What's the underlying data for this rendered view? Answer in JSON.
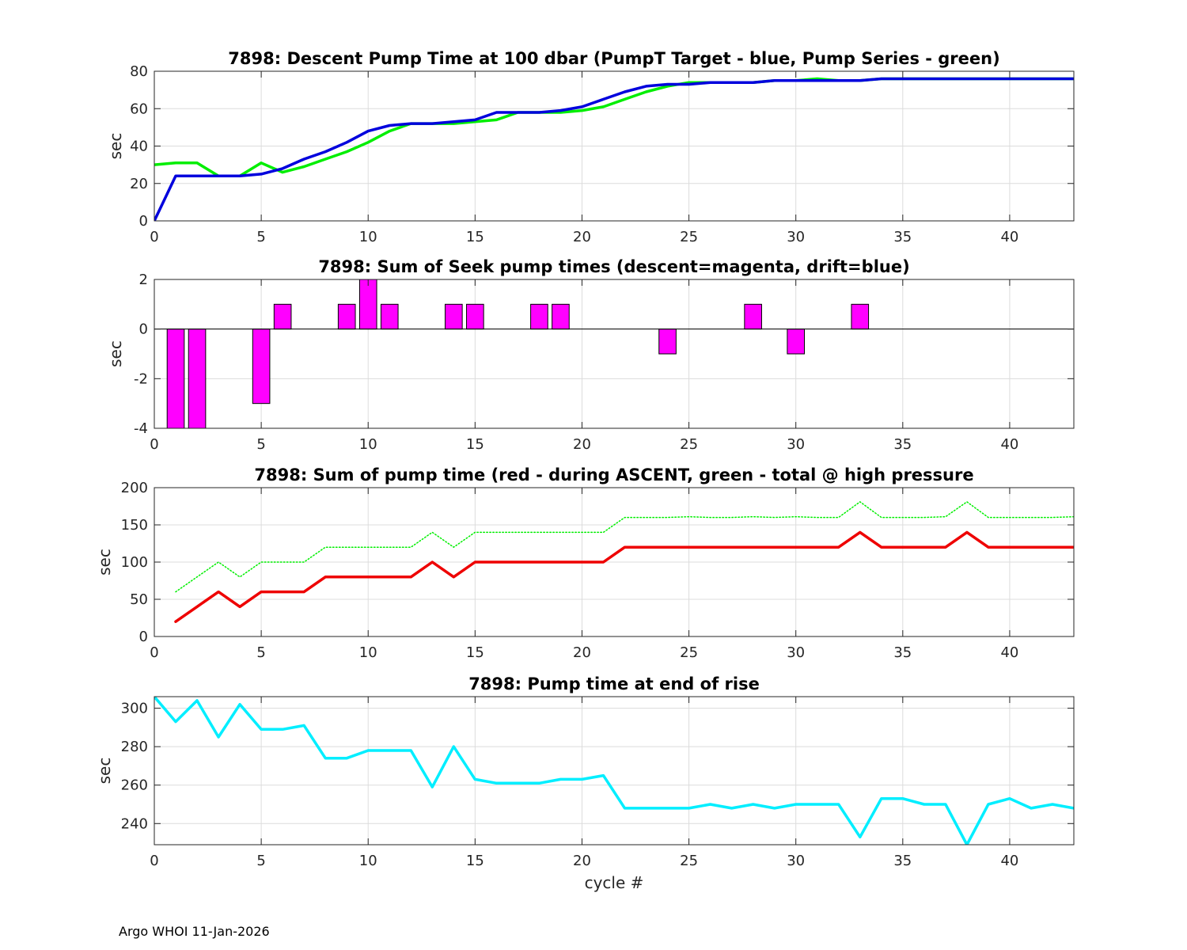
{
  "footer": "Argo WHOI 11-Jan-2026",
  "chart_data": [
    {
      "type": "line",
      "title": "7898: Descent Pump Time at 100 dbar (PumpT Target - blue, Pump Series - green)",
      "xlabel": "",
      "ylabel": "sec",
      "xlim": [
        0,
        43
      ],
      "ylim": [
        0,
        80
      ],
      "xticks": [
        0,
        5,
        10,
        15,
        20,
        25,
        30,
        35,
        40
      ],
      "yticks": [
        0,
        20,
        40,
        60,
        80
      ],
      "series": [
        {
          "name": "Pump Series",
          "color": "#00ee00",
          "style": "solid",
          "x": [
            0,
            1,
            2,
            3,
            4,
            5,
            6,
            7,
            8,
            9,
            10,
            11,
            12,
            13,
            14,
            15,
            16,
            17,
            18,
            19,
            20,
            21,
            22,
            23,
            24,
            25,
            26,
            27,
            28,
            29,
            30,
            31,
            32,
            33,
            34,
            35,
            36,
            37,
            38,
            39,
            40,
            41,
            42,
            43
          ],
          "y": [
            30,
            31,
            31,
            24,
            24,
            31,
            26,
            29,
            33,
            37,
            42,
            48,
            52,
            52,
            52,
            53,
            54,
            58,
            58,
            58,
            59,
            61,
            65,
            69,
            72,
            74,
            74,
            74,
            74,
            75,
            75,
            76,
            75,
            75,
            76,
            76,
            76,
            76,
            76,
            76,
            76,
            76,
            76,
            76
          ]
        },
        {
          "name": "PumpT Target",
          "color": "#0000dd",
          "style": "solid",
          "x": [
            0,
            1,
            2,
            3,
            4,
            5,
            6,
            7,
            8,
            9,
            10,
            11,
            12,
            13,
            14,
            15,
            16,
            17,
            18,
            19,
            20,
            21,
            22,
            23,
            24,
            25,
            26,
            27,
            28,
            29,
            30,
            31,
            32,
            33,
            34,
            35,
            36,
            37,
            38,
            39,
            40,
            41,
            42,
            43
          ],
          "y": [
            0,
            24,
            24,
            24,
            24,
            25,
            28,
            33,
            37,
            42,
            48,
            51,
            52,
            52,
            53,
            54,
            58,
            58,
            58,
            59,
            61,
            65,
            69,
            72,
            73,
            73,
            74,
            74,
            74,
            75,
            75,
            75,
            75,
            75,
            76,
            76,
            76,
            76,
            76,
            76,
            76,
            76,
            76,
            76
          ]
        }
      ]
    },
    {
      "type": "bar",
      "title": "7898: Sum of Seek pump times (descent=magenta, drift=blue)",
      "xlabel": "",
      "ylabel": "sec",
      "xlim": [
        0,
        43
      ],
      "ylim": [
        -4,
        2
      ],
      "xticks": [
        0,
        5,
        10,
        15,
        20,
        25,
        30,
        35,
        40
      ],
      "yticks": [
        -4,
        -2,
        0,
        2
      ],
      "series": [
        {
          "name": "descent",
          "color": "#ff00ff",
          "x": [
            1,
            2,
            5,
            6,
            9,
            10,
            11,
            14,
            15,
            18,
            19,
            24,
            28,
            30,
            33
          ],
          "values": [
            -4,
            -4,
            -3,
            1,
            1,
            2,
            1,
            1,
            1,
            1,
            1,
            -1,
            1,
            -1,
            1
          ]
        }
      ]
    },
    {
      "type": "line",
      "title": "7898: Sum of pump time (red - during ASCENT, green - total @ high pressure",
      "xlabel": "",
      "ylabel": "sec",
      "xlim": [
        0,
        43
      ],
      "ylim": [
        0,
        200
      ],
      "xticks": [
        0,
        5,
        10,
        15,
        20,
        25,
        30,
        35,
        40
      ],
      "yticks": [
        0,
        50,
        100,
        150,
        200
      ],
      "series": [
        {
          "name": "total @ high pressure",
          "color": "#00ee00",
          "style": "dotted",
          "x": [
            1,
            2,
            3,
            4,
            5,
            6,
            7,
            8,
            9,
            10,
            11,
            12,
            13,
            14,
            15,
            16,
            17,
            18,
            19,
            20,
            21,
            22,
            23,
            24,
            25,
            26,
            27,
            28,
            29,
            30,
            31,
            32,
            33,
            34,
            35,
            36,
            37,
            38,
            39,
            40,
            41,
            42,
            43
          ],
          "y": [
            60,
            80,
            100,
            80,
            100,
            100,
            100,
            120,
            120,
            120,
            120,
            120,
            140,
            120,
            140,
            140,
            140,
            140,
            140,
            140,
            140,
            160,
            160,
            160,
            161,
            160,
            160,
            161,
            160,
            161,
            160,
            160,
            181,
            160,
            160,
            160,
            161,
            181,
            160,
            160,
            160,
            160,
            161
          ]
        },
        {
          "name": "during ASCENT",
          "color": "#ee0000",
          "style": "solid",
          "x": [
            1,
            2,
            3,
            4,
            5,
            6,
            7,
            8,
            9,
            10,
            11,
            12,
            13,
            14,
            15,
            16,
            17,
            18,
            19,
            20,
            21,
            22,
            23,
            24,
            25,
            26,
            27,
            28,
            29,
            30,
            31,
            32,
            33,
            34,
            35,
            36,
            37,
            38,
            39,
            40,
            41,
            42,
            43
          ],
          "y": [
            20,
            40,
            60,
            40,
            60,
            60,
            60,
            80,
            80,
            80,
            80,
            80,
            100,
            80,
            100,
            100,
            100,
            100,
            100,
            100,
            100,
            120,
            120,
            120,
            120,
            120,
            120,
            120,
            120,
            120,
            120,
            120,
            140,
            120,
            120,
            120,
            120,
            140,
            120,
            120,
            120,
            120,
            120
          ]
        }
      ]
    },
    {
      "type": "line",
      "title": "7898: Pump time at end of rise",
      "xlabel": "cycle #",
      "ylabel": "sec",
      "xlim": [
        0,
        43
      ],
      "ylim": [
        229,
        306
      ],
      "xticks": [
        0,
        5,
        10,
        15,
        20,
        25,
        30,
        35,
        40
      ],
      "yticks": [
        240,
        260,
        280,
        300
      ],
      "series": [
        {
          "name": "end of rise",
          "color": "#00eeff",
          "style": "solid",
          "x": [
            0,
            1,
            2,
            3,
            4,
            5,
            6,
            7,
            8,
            9,
            10,
            11,
            12,
            13,
            14,
            15,
            16,
            17,
            18,
            19,
            20,
            21,
            22,
            23,
            24,
            25,
            26,
            27,
            28,
            29,
            30,
            31,
            32,
            33,
            34,
            35,
            36,
            37,
            38,
            39,
            40,
            41,
            42,
            43
          ],
          "y": [
            306,
            293,
            304,
            285,
            302,
            289,
            289,
            291,
            274,
            274,
            278,
            278,
            278,
            259,
            280,
            263,
            261,
            261,
            261,
            263,
            263,
            265,
            248,
            248,
            248,
            248,
            250,
            248,
            250,
            248,
            250,
            250,
            250,
            233,
            253,
            253,
            250,
            250,
            229,
            250,
            253,
            248,
            250,
            248
          ]
        }
      ]
    }
  ]
}
